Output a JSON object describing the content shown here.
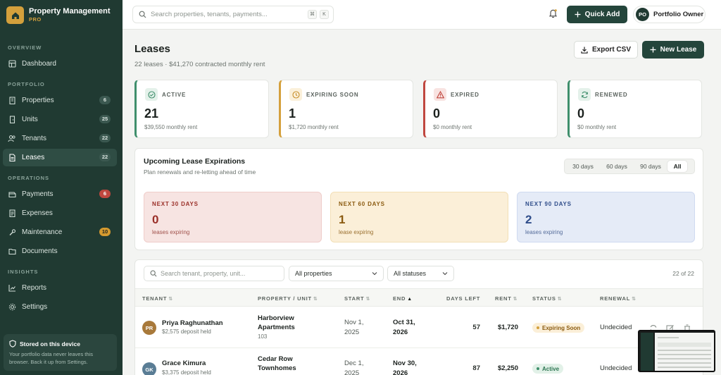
{
  "brand": {
    "title": "Property Management",
    "subtitle": "PRO"
  },
  "sidebar": {
    "sections": {
      "overview": "OVERVIEW",
      "portfolio": "PORTFOLIO",
      "operations": "OPERATIONS",
      "insights": "INSIGHTS"
    },
    "items": [
      {
        "label": "Dashboard",
        "icon": "dashboard-icon"
      },
      {
        "label": "Properties",
        "badge": "6",
        "icon": "building-icon"
      },
      {
        "label": "Units",
        "badge": "25",
        "icon": "unit-icon"
      },
      {
        "label": "Tenants",
        "badge": "22",
        "icon": "users-icon"
      },
      {
        "label": "Leases",
        "badge": "22",
        "icon": "document-icon",
        "active": true
      },
      {
        "label": "Payments",
        "badge": "6",
        "icon": "payments-icon"
      },
      {
        "label": "Expenses",
        "icon": "receipt-icon"
      },
      {
        "label": "Maintenance",
        "badge": "10",
        "icon": "wrench-icon"
      },
      {
        "label": "Documents",
        "icon": "folder-icon"
      },
      {
        "label": "Reports",
        "icon": "chart-icon"
      },
      {
        "label": "Settings",
        "icon": "gear-icon"
      }
    ],
    "storage": {
      "title": "Stored on this device",
      "description": "Your portfolio data never leaves this browser. Back it up from Settings."
    }
  },
  "topbar": {
    "search_placeholder": "Search properties, tenants, payments...",
    "kbd1": "⌘",
    "kbd2": "K",
    "quick_add": "Quick Add",
    "owner_initials": "PO",
    "owner_name": "Portfolio Owner"
  },
  "header": {
    "title": "Leases",
    "subtitle": "22 leases · $41,270 contracted monthly rent",
    "export_label": "Export CSV",
    "new_label": "New Lease"
  },
  "stats": [
    {
      "label": "ACTIVE",
      "value": "21",
      "note": "$39,550 monthly rent",
      "color": "#3f8f6c"
    },
    {
      "label": "EXPIRING SOON",
      "value": "1",
      "note": "$1,720 monthly rent",
      "color": "#d4a03c"
    },
    {
      "label": "EXPIRED",
      "value": "0",
      "note": "$0 monthly rent",
      "color": "#c0473f"
    },
    {
      "label": "RENEWED",
      "value": "0",
      "note": "$0 monthly rent",
      "color": "#3f8f6c"
    }
  ],
  "expirations": {
    "title": "Upcoming Lease Expirations",
    "subtitle": "Plan renewals and re-letting ahead of time",
    "filters": [
      "30 days",
      "60 days",
      "90 days",
      "All"
    ],
    "active_filter": "All",
    "windows": [
      {
        "label": "NEXT 30 DAYS",
        "value": "0",
        "note": "leases expiring"
      },
      {
        "label": "NEXT 60 DAYS",
        "value": "1",
        "note": "lease expiring"
      },
      {
        "label": "NEXT 90 DAYS",
        "value": "2",
        "note": "leases expiring"
      }
    ]
  },
  "table": {
    "search_placeholder": "Search tenant, property, unit...",
    "property_filter": "All properties",
    "status_filter": "All statuses",
    "count": "22 of 22",
    "columns": [
      "TENANT",
      "PROPERTY / UNIT",
      "START",
      "END",
      "DAYS LEFT",
      "RENT",
      "STATUS",
      "RENEWAL"
    ],
    "rows": [
      {
        "initials": "PR",
        "tenant": "Priya Raghunathan",
        "deposit": "$2,575 deposit held",
        "property_line1": "Harborview",
        "property_line2": "Apartments",
        "unit": "103",
        "start_line1": "Nov 1,",
        "start_line2": "2025",
        "end_line1": "Oct 31,",
        "end_line2": "2026",
        "days_left": "57",
        "rent": "$1,720",
        "status": "Expiring Soon",
        "renewal": "Undecided"
      },
      {
        "initials": "GK",
        "tenant": "Grace Kimura",
        "deposit": "$3,375 deposit held",
        "property_line1": "Cedar Row",
        "property_line2": "Townhomes",
        "unit": "",
        "start_line1": "Dec 1,",
        "start_line2": "2025",
        "end_line1": "Nov 30,",
        "end_line2": "2026",
        "days_left": "87",
        "rent": "$2,250",
        "status": "Active",
        "renewal": "Undecided"
      }
    ]
  }
}
